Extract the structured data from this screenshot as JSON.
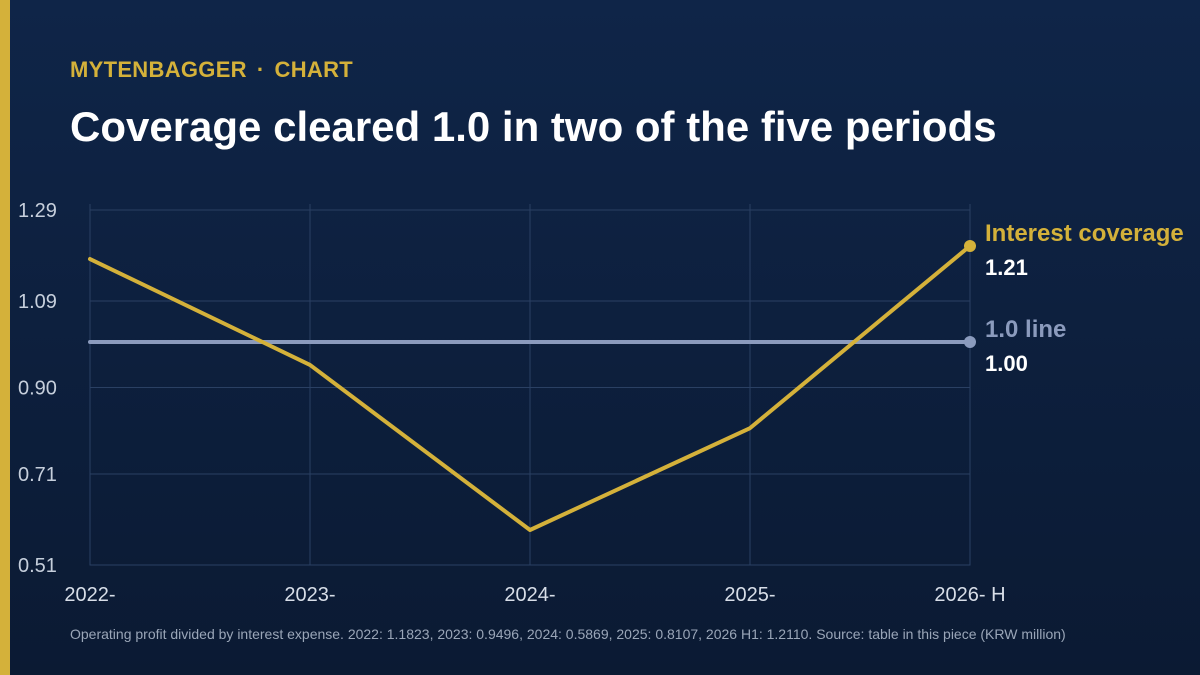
{
  "header": {
    "brand": "MYTENBAGGER",
    "separator": "·",
    "section": "CHART",
    "title": "Coverage cleared 1.0 in two of the five periods"
  },
  "colors": {
    "background": "#0f2548",
    "accent": "#d4b13a",
    "coverage_line": "#d4b13a",
    "reference_line": "#8b9bbd",
    "grid": "#2a4063"
  },
  "chart_data": {
    "type": "line",
    "title": "Coverage cleared 1.0 in two of the five periods",
    "xlabel": "",
    "ylabel": "",
    "categories": [
      "2022-",
      "2023-",
      "2024-",
      "2025-",
      "2026- H"
    ],
    "yticks": [
      "1.29",
      "1.09",
      "0.90",
      "0.71",
      "0.51"
    ],
    "ylim": [
      0.51,
      1.29
    ],
    "grid": true,
    "series": [
      {
        "name": "Interest coverage",
        "values": [
          1.1823,
          0.9496,
          0.5869,
          0.8107,
          1.211
        ],
        "end_label": "1.21",
        "color": "#d4b13a"
      },
      {
        "name": "1.0 line",
        "values": [
          1.0,
          1.0,
          1.0,
          1.0,
          1.0
        ],
        "end_label": "1.00",
        "color": "#8b9bbd"
      }
    ]
  },
  "footer": {
    "caption": "Operating profit divided by interest expense. 2022: 1.1823, 2023: 0.9496, 2024: 0.5869, 2025: 0.8107, 2026 H1: 1.2110. Source: table in this piece (KRW million)"
  }
}
